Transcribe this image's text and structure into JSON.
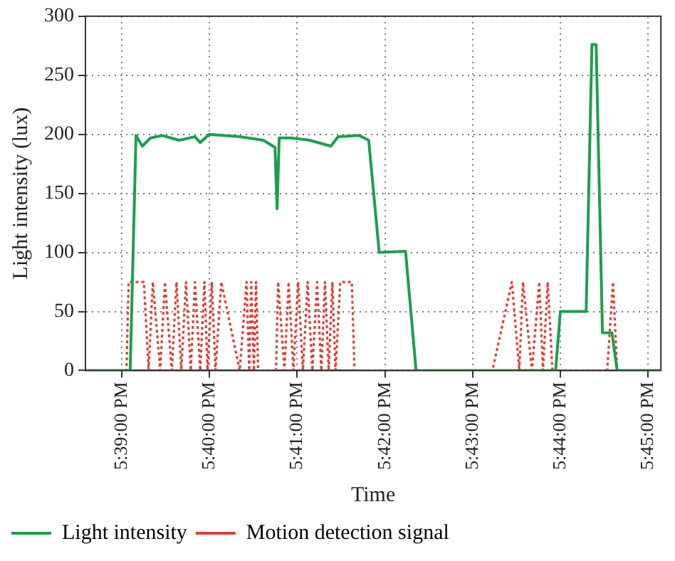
{
  "chart_data": {
    "type": "line",
    "xlabel": "Time",
    "ylabel": "Light intensity (lux)",
    "xlim": [
      17.6431,
      17.7524
    ],
    "ylim": [
      0,
      300
    ],
    "xticks": [
      {
        "value": 17.65,
        "label": "5:39:00 PM"
      },
      {
        "value": 17.666667,
        "label": "5:40:00 PM"
      },
      {
        "value": 17.683333,
        "label": "5:41:00 PM"
      },
      {
        "value": 17.7,
        "label": "5:42:00 PM"
      },
      {
        "value": 17.716667,
        "label": "5:43:00 PM"
      },
      {
        "value": 17.733333,
        "label": "5:44:00 PM"
      },
      {
        "value": 17.75,
        "label": "5:45:00 PM"
      }
    ],
    "yticks": [
      0,
      50,
      100,
      150,
      200,
      250,
      300
    ],
    "grid": true,
    "legend": "bottom",
    "marker": "none",
    "series": [
      {
        "name": "Light intensity",
        "color": "#1f9e4f",
        "line_style": "solid",
        "x": [
          17.6431,
          17.6516,
          17.6527,
          17.6539,
          17.6555,
          17.6577,
          17.6609,
          17.6639,
          17.6649,
          17.6666,
          17.6724,
          17.6769,
          17.6791,
          17.6795,
          17.6799,
          17.6822,
          17.6857,
          17.6897,
          17.6911,
          17.6951,
          17.6969,
          17.6989,
          17.7039,
          17.7059,
          17.7324,
          17.7333,
          17.7382,
          17.7393,
          17.7401,
          17.7413,
          17.7431,
          17.7441,
          17.7524
        ],
        "values": [
          0,
          0,
          199,
          190,
          197,
          199,
          195,
          198,
          193,
          200,
          198,
          195,
          189,
          137,
          197,
          197,
          195,
          190,
          198,
          199,
          195,
          100,
          101,
          0,
          0,
          50,
          50,
          276,
          276,
          32,
          32,
          0,
          0
        ]
      },
      {
        "name": "Motion detection signal",
        "color": "#d9403a",
        "line_style": "dotted",
        "x": [
          17.6431,
          17.6509,
          17.6513,
          17.6542,
          17.6551,
          17.6559,
          17.6573,
          17.6582,
          17.6595,
          17.6604,
          17.6613,
          17.6622,
          17.6631,
          17.6639,
          17.6649,
          17.6657,
          17.6663,
          17.6671,
          17.6678,
          17.6689,
          17.6724,
          17.6737,
          17.6742,
          17.6746,
          17.6751,
          17.6755,
          17.6759,
          17.6793,
          17.6797,
          17.6809,
          17.6817,
          17.6826,
          17.6835,
          17.6844,
          17.6853,
          17.6862,
          17.6871,
          17.6879,
          17.6886,
          17.6893,
          17.69,
          17.6906,
          17.6915,
          17.6937,
          17.6942,
          17.7204,
          17.7241,
          17.7255,
          17.7262,
          17.7279,
          17.7293,
          17.73,
          17.7309,
          17.7318,
          17.7422,
          17.7433,
          17.7441,
          17.7524
        ],
        "values": [
          0,
          0,
          75,
          75,
          0,
          75,
          0,
          75,
          0,
          75,
          0,
          75,
          0,
          75,
          0,
          75,
          0,
          75,
          0,
          75,
          0,
          75,
          0,
          75,
          0,
          75,
          0,
          0,
          75,
          0,
          75,
          0,
          75,
          0,
          75,
          0,
          75,
          0,
          75,
          0,
          75,
          0,
          75,
          75,
          0,
          0,
          75,
          0,
          75,
          0,
          75,
          0,
          75,
          0,
          0,
          75,
          0,
          0
        ]
      }
    ]
  }
}
